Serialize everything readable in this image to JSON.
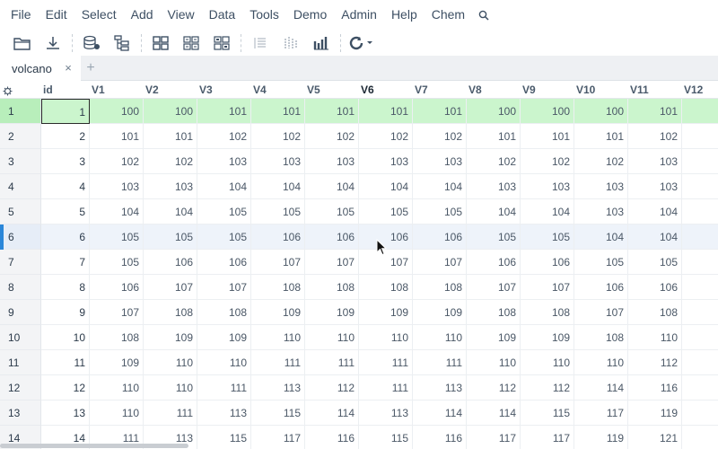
{
  "menubar": {
    "items": [
      {
        "key": "file",
        "label": "File"
      },
      {
        "key": "edit",
        "label": "Edit"
      },
      {
        "key": "select",
        "label": "Select"
      },
      {
        "key": "add",
        "label": "Add"
      },
      {
        "key": "view",
        "label": "View"
      },
      {
        "key": "data",
        "label": "Data"
      },
      {
        "key": "tools",
        "label": "Tools"
      },
      {
        "key": "demo",
        "label": "Demo"
      },
      {
        "key": "admin",
        "label": "Admin"
      },
      {
        "key": "help",
        "label": "Help"
      },
      {
        "key": "chem",
        "label": "Chem"
      }
    ],
    "search_icon": "search-icon"
  },
  "toolbar": {
    "icons": [
      "open-folder-icon",
      "download-icon",
      "database-icon",
      "tree-icon",
      "grid-view-icon",
      "table-view-icon",
      "tiles-view-icon",
      "align-list-icon",
      "columns-dim-icon",
      "bar-columns-icon",
      "refresh-dropdown-icon"
    ]
  },
  "tabs": [
    {
      "label": "volcano",
      "close": "×"
    }
  ],
  "tab_add": "+",
  "grid": {
    "columns": [
      "id",
      "V1",
      "V2",
      "V3",
      "V4",
      "V5",
      "V6",
      "V7",
      "V8",
      "V9",
      "V10",
      "V11",
      "V12"
    ],
    "active_column": "V6",
    "selected_row": 1,
    "current_row": 6,
    "rows": [
      {
        "n": "1",
        "cells": [
          "1",
          "100",
          "100",
          "101",
          "101",
          "101",
          "101",
          "101",
          "100",
          "100",
          "100",
          "101",
          "10"
        ]
      },
      {
        "n": "2",
        "cells": [
          "2",
          "101",
          "101",
          "102",
          "102",
          "102",
          "102",
          "102",
          "101",
          "101",
          "101",
          "102",
          "10"
        ]
      },
      {
        "n": "3",
        "cells": [
          "3",
          "102",
          "102",
          "103",
          "103",
          "103",
          "103",
          "103",
          "102",
          "102",
          "102",
          "103",
          "10"
        ]
      },
      {
        "n": "4",
        "cells": [
          "4",
          "103",
          "103",
          "104",
          "104",
          "104",
          "104",
          "104",
          "103",
          "103",
          "103",
          "103",
          "10"
        ]
      },
      {
        "n": "5",
        "cells": [
          "5",
          "104",
          "104",
          "105",
          "105",
          "105",
          "105",
          "105",
          "104",
          "104",
          "103",
          "104",
          "10"
        ]
      },
      {
        "n": "6",
        "cells": [
          "6",
          "105",
          "105",
          "105",
          "106",
          "106",
          "106",
          "106",
          "105",
          "105",
          "104",
          "104",
          "10"
        ]
      },
      {
        "n": "7",
        "cells": [
          "7",
          "105",
          "106",
          "106",
          "107",
          "107",
          "107",
          "107",
          "106",
          "106",
          "105",
          "105",
          "10"
        ]
      },
      {
        "n": "8",
        "cells": [
          "8",
          "106",
          "107",
          "107",
          "108",
          "108",
          "108",
          "108",
          "107",
          "107",
          "106",
          "106",
          "10"
        ]
      },
      {
        "n": "9",
        "cells": [
          "9",
          "107",
          "108",
          "108",
          "109",
          "109",
          "109",
          "109",
          "108",
          "108",
          "107",
          "108",
          "10"
        ]
      },
      {
        "n": "10",
        "cells": [
          "10",
          "108",
          "109",
          "109",
          "110",
          "110",
          "110",
          "110",
          "109",
          "109",
          "108",
          "110",
          "10"
        ]
      },
      {
        "n": "11",
        "cells": [
          "11",
          "109",
          "110",
          "110",
          "111",
          "111",
          "111",
          "111",
          "110",
          "110",
          "110",
          "112",
          "11"
        ]
      },
      {
        "n": "12",
        "cells": [
          "12",
          "110",
          "110",
          "111",
          "113",
          "112",
          "111",
          "113",
          "112",
          "112",
          "114",
          "116",
          "11"
        ]
      },
      {
        "n": "13",
        "cells": [
          "13",
          "110",
          "111",
          "113",
          "115",
          "114",
          "113",
          "114",
          "114",
          "115",
          "117",
          "119",
          "12"
        ]
      },
      {
        "n": "14",
        "cells": [
          "14",
          "111",
          "113",
          "115",
          "117",
          "116",
          "115",
          "116",
          "117",
          "117",
          "119",
          "121",
          "12"
        ]
      }
    ]
  },
  "colors": {
    "selected_row": "#cbf5cd",
    "current_row": "#eef3fa",
    "current_marker": "#2a86d9"
  }
}
